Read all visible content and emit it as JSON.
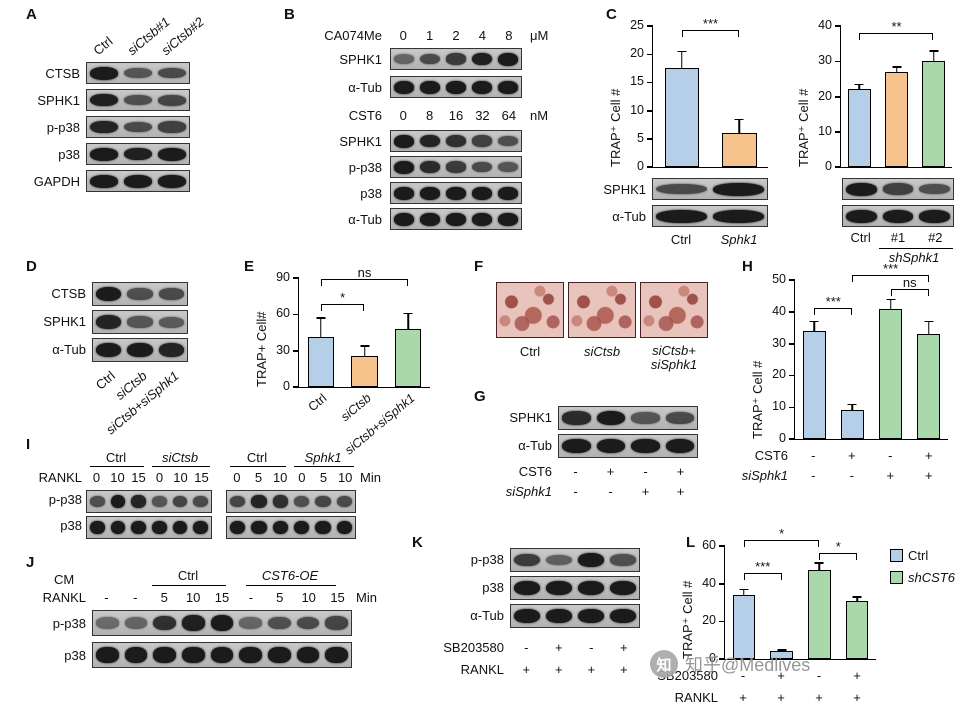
{
  "figure": {
    "watermark": {
      "logo": "知",
      "text": "知乎@Medlives"
    }
  },
  "panels": {
    "A": {
      "label": "A",
      "cols": [
        "Ctrl",
        "siCtsb#1",
        "siCtsb#2"
      ],
      "rows": [
        "CTSB",
        "SPHK1",
        "p-p38",
        "p38",
        "GAPDH"
      ]
    },
    "B": {
      "label": "B",
      "blot1": {
        "treatment": "CA074Me",
        "doses": [
          "0",
          "1",
          "2",
          "4",
          "8"
        ],
        "unit": "μM",
        "rows": [
          "SPHK1",
          "α-Tub"
        ]
      },
      "blot2": {
        "treatment": "CST6",
        "doses": [
          "0",
          "8",
          "16",
          "32",
          "64"
        ],
        "unit": "nM",
        "rows": [
          "SPHK1",
          "p-p38",
          "p38",
          "α-Tub"
        ]
      }
    },
    "C": {
      "label": "C",
      "blot_rows": [
        "SPHK1",
        "α-Tub"
      ],
      "left_cols": [
        "Ctrl",
        "Sphk1"
      ],
      "right_cols": [
        "Ctrl",
        "#1",
        "#2"
      ],
      "right_group": "shSphk1"
    },
    "D": {
      "label": "D",
      "rows": [
        "CTSB",
        "SPHK1",
        "α-Tub"
      ],
      "cols": [
        "Ctrl",
        "siCtsb",
        "siCtsb+siSphk1"
      ]
    },
    "E": {
      "label": "E"
    },
    "F": {
      "label": "F",
      "cols": [
        "Ctrl",
        "siCtsb",
        "siCtsb+ siSphk1"
      ]
    },
    "G": {
      "label": "G",
      "rows": [
        "SPHK1",
        "α-Tub"
      ],
      "cond": [
        {
          "name": "CST6",
          "vals": [
            "-",
            "+",
            "-",
            "+"
          ]
        },
        {
          "name": "siSphk1",
          "vals": [
            "-",
            "-",
            "+",
            "+"
          ]
        }
      ]
    },
    "H": {
      "label": "H",
      "cond": [
        {
          "name": "CST6",
          "vals": [
            "-",
            "+",
            "-",
            "+"
          ]
        },
        {
          "name": "siSphk1",
          "vals": [
            "-",
            "-",
            "+",
            "+"
          ]
        }
      ]
    },
    "I": {
      "label": "I",
      "rankl": "RANKL",
      "unit": "Min",
      "rows": [
        "p-p38",
        "p38"
      ],
      "blot1": {
        "groups": [
          "Ctrl",
          "siCtsb"
        ],
        "times": [
          "0",
          "10",
          "15",
          "0",
          "10",
          "15"
        ]
      },
      "blot2": {
        "groups": [
          "Ctrl",
          "Sphk1"
        ],
        "times": [
          "0",
          "5",
          "10",
          "0",
          "5",
          "10"
        ]
      }
    },
    "J": {
      "label": "J",
      "cm": "CM",
      "rankl": "RANKL",
      "unit": "Min",
      "groups": [
        "Ctrl",
        "CST6-OE"
      ],
      "times": [
        "-",
        "-",
        "5",
        "10",
        "15",
        "-",
        "5",
        "10",
        "15"
      ],
      "rows": [
        "p-p38",
        "p38"
      ]
    },
    "K": {
      "label": "K",
      "rows": [
        "p-p38",
        "p38",
        "α-Tub"
      ],
      "cond": [
        {
          "name": "SB203580",
          "vals": [
            "-",
            "+",
            "-",
            "+"
          ]
        },
        {
          "name": "RANKL",
          "vals": [
            "+",
            "+",
            "+",
            "+"
          ]
        }
      ]
    },
    "L": {
      "label": "L",
      "legend": [
        "Ctrl",
        "shCST6"
      ],
      "cond": [
        {
          "name": "SB203580",
          "vals": [
            "-",
            "+",
            "-",
            "+"
          ]
        },
        {
          "name": "RANKL",
          "vals": [
            "+",
            "+",
            "+",
            "+"
          ]
        }
      ]
    }
  },
  "chart_data": [
    {
      "id": "panel-C-left",
      "type": "bar",
      "ylabel": "TRAP⁺ Cell #",
      "ylim": [
        0,
        25
      ],
      "yticks": [
        0,
        5,
        10,
        15,
        20,
        25
      ],
      "categories": [
        "Ctrl",
        "Sphk1"
      ],
      "show_categories": false,
      "values": [
        17.5,
        6
      ],
      "errors": [
        3,
        2.5
      ],
      "colors": [
        "#b5cfe8",
        "#f6c38c"
      ],
      "sig": [
        {
          "from": 0,
          "to": 1,
          "label": "***",
          "y": 0.92
        }
      ]
    },
    {
      "id": "panel-C-right",
      "type": "bar",
      "ylabel": "TRAP⁺ Cell #",
      "ylim": [
        0,
        40
      ],
      "yticks": [
        0,
        10,
        20,
        30,
        40
      ],
      "categories": [
        "Ctrl",
        "#1",
        "#2"
      ],
      "show_categories": false,
      "values": [
        22,
        27,
        30
      ],
      "errors": [
        1.5,
        1.5,
        3
      ],
      "colors": [
        "#b5cfe8",
        "#f6c38c",
        "#a9d9ab"
      ],
      "sig": [
        {
          "from": 0,
          "to": 2,
          "label": "**",
          "y": 0.9
        }
      ]
    },
    {
      "id": "panel-E",
      "type": "bar",
      "ylabel": "TRAP+ Cell#",
      "ylim": [
        0,
        90
      ],
      "yticks": [
        0,
        30,
        60,
        90
      ],
      "categories": [
        "Ctrl",
        "siCtsb",
        "siCtsb+siSphk1"
      ],
      "show_categories": true,
      "cat_rotate": true,
      "cat_italic": [
        false,
        true,
        true
      ],
      "values": [
        41,
        26,
        48
      ],
      "errors": [
        16,
        8,
        13
      ],
      "colors": [
        "#b5cfe8",
        "#f6c38c",
        "#a9d9ab"
      ],
      "sig": [
        {
          "from": 0,
          "to": 1,
          "label": "*",
          "y": 0.7
        },
        {
          "from": 0,
          "to": 2,
          "label": "ns",
          "y": 0.93
        }
      ]
    },
    {
      "id": "panel-H",
      "type": "bar",
      "ylabel": "TRAP⁺ Cell #",
      "ylim": [
        0,
        50
      ],
      "yticks": [
        0,
        10,
        20,
        30,
        40,
        50
      ],
      "categories": [],
      "show_categories": false,
      "values": [
        34,
        9,
        41,
        33
      ],
      "errors": [
        3,
        2,
        3,
        4
      ],
      "colors": [
        "#b5cfe8",
        "#b5cfe8",
        "#a9d9ab",
        "#a9d9ab"
      ],
      "sig": [
        {
          "from": 0,
          "to": 1,
          "label": "***",
          "y": 0.78
        },
        {
          "from": 1,
          "to": 3,
          "label": "***",
          "y": 0.99
        },
        {
          "from": 2,
          "to": 3,
          "label": "ns",
          "y": 0.9
        }
      ]
    },
    {
      "id": "panel-L",
      "type": "bar",
      "ylabel": "TRAP⁺ Cell #",
      "ylim": [
        0,
        60
      ],
      "yticks": [
        0,
        20,
        40,
        60
      ],
      "categories": [],
      "show_categories": false,
      "values": [
        34,
        4,
        47,
        31
      ],
      "errors": [
        3,
        1,
        4,
        2
      ],
      "colors": [
        "#b5cfe8",
        "#b5cfe8",
        "#a9d9ab",
        "#a9d9ab"
      ],
      "sig": [
        {
          "from": 0,
          "to": 1,
          "label": "***",
          "y": 0.7
        },
        {
          "from": 0,
          "to": 2,
          "label": "*",
          "y": 0.99
        },
        {
          "from": 2,
          "to": 3,
          "label": "*",
          "y": 0.88
        }
      ]
    }
  ]
}
